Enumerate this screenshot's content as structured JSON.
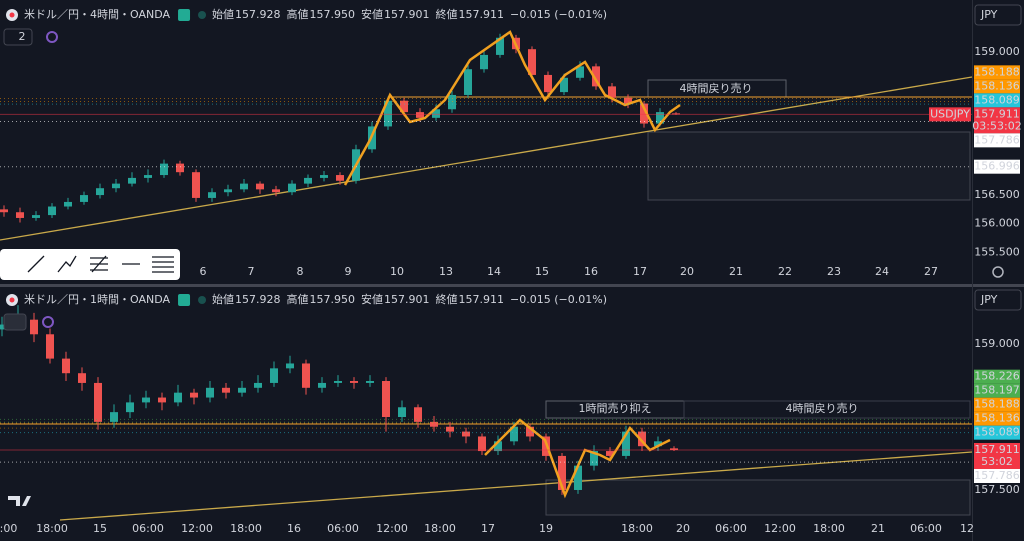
{
  "chart_data": [
    {
      "type": "candlestick",
      "title": "米ドル／円・4時間・OANDA",
      "indicator_count": "2",
      "ohlc_labels": [
        "始値",
        "高値",
        "安値",
        "終値"
      ],
      "ohlc_values": [
        157.928,
        {
          "value": 157.95,
          "label": "157.950"
        },
        157.901,
        157.911
      ],
      "change": "−0.015 (−0.01%)",
      "currency": "JPY",
      "candles": [
        [
          156.25,
          156.32,
          156.12,
          156.2
        ],
        [
          156.2,
          156.28,
          156.02,
          156.1
        ],
        [
          156.1,
          156.22,
          156.05,
          156.15
        ],
        [
          156.15,
          156.36,
          156.1,
          156.3
        ],
        [
          156.3,
          156.45,
          156.25,
          156.38
        ],
        [
          156.38,
          156.56,
          156.33,
          156.5
        ],
        [
          156.5,
          156.7,
          156.44,
          156.62
        ],
        [
          156.62,
          156.78,
          156.55,
          156.7
        ],
        [
          156.7,
          156.9,
          156.65,
          156.8
        ],
        [
          156.8,
          156.95,
          156.72,
          156.85
        ],
        [
          156.85,
          157.12,
          156.8,
          157.05
        ],
        [
          157.05,
          157.1,
          156.84,
          156.9
        ],
        [
          156.9,
          156.95,
          156.38,
          156.45
        ],
        [
          156.45,
          156.62,
          156.38,
          156.55
        ],
        [
          156.55,
          156.68,
          156.48,
          156.6
        ],
        [
          156.6,
          156.78,
          156.55,
          156.7
        ],
        [
          156.7,
          156.74,
          156.52,
          156.6
        ],
        [
          156.6,
          156.66,
          156.48,
          156.55
        ],
        [
          156.55,
          156.76,
          156.5,
          156.7
        ],
        [
          156.7,
          156.86,
          156.64,
          156.8
        ],
        [
          156.8,
          156.92,
          156.74,
          156.85
        ],
        [
          156.85,
          156.9,
          156.68,
          156.75
        ],
        [
          156.75,
          157.38,
          156.7,
          157.3
        ],
        [
          157.3,
          157.78,
          157.24,
          157.7
        ],
        [
          157.7,
          158.22,
          157.64,
          158.15
        ],
        [
          158.15,
          158.2,
          157.88,
          157.95
        ],
        [
          157.95,
          158.02,
          157.78,
          157.85
        ],
        [
          157.85,
          158.08,
          157.8,
          158.0
        ],
        [
          158.0,
          158.32,
          157.94,
          158.25
        ],
        [
          158.25,
          158.78,
          158.2,
          158.7
        ],
        [
          158.7,
          159.02,
          158.64,
          158.95
        ],
        [
          158.95,
          159.32,
          158.9,
          159.25
        ],
        [
          159.25,
          159.3,
          158.98,
          159.05
        ],
        [
          159.05,
          159.1,
          158.52,
          158.6
        ],
        [
          158.6,
          158.66,
          158.22,
          158.3
        ],
        [
          158.3,
          158.62,
          158.25,
          158.55
        ],
        [
          158.55,
          158.84,
          158.5,
          158.75
        ],
        [
          158.75,
          158.8,
          158.34,
          158.4
        ],
        [
          158.4,
          158.46,
          158.12,
          158.2
        ],
        [
          158.2,
          158.26,
          158.02,
          158.1
        ],
        [
          158.1,
          158.14,
          157.68,
          157.75
        ],
        [
          157.75,
          158.02,
          157.7,
          157.95
        ],
        [
          157.928,
          157.95,
          157.901,
          157.911
        ]
      ],
      "ylim": [
        155.33,
        159.91
      ],
      "yticks": [
        {
          "value": 159,
          "label": "159.000"
        },
        {
          "value": 156.5,
          "label": "156.500"
        },
        {
          "value": 156,
          "label": "156.000"
        },
        {
          "value": 155.5,
          "label": "155.500"
        }
      ],
      "price_tags": [
        {
          "value": 158.188,
          "color": "#ff9800"
        },
        {
          "value": 158.136,
          "color": "#ff9800"
        },
        {
          "value": 158.089,
          "color": "#26c6da"
        },
        {
          "value": 157.911,
          "color": "#f23645",
          "symbol": "USDJPY",
          "countdown": "03:53:02"
        },
        {
          "value": 157.786,
          "color": "#ffffff"
        },
        {
          "value": 156.996,
          "color": "#ffffff"
        }
      ],
      "xlabels": [
        "6",
        "7",
        "8",
        "9",
        "10",
        "13",
        "14",
        "15",
        "16",
        "17",
        "20",
        "21",
        "22",
        "23",
        "24",
        "27"
      ],
      "annotations": [
        "4時間戻り売り"
      ]
    },
    {
      "type": "candlestick",
      "title": "米ドル／円・1時間・OANDA",
      "ohlc_labels": [
        "始値",
        "高値",
        "安値",
        "終値"
      ],
      "ohlc_values": [
        157.928,
        {
          "value": 157.95,
          "label": "157.950"
        },
        157.901,
        157.911
      ],
      "change": "−0.015 (−0.01%)",
      "currency": "JPY",
      "candles": [
        [
          159.15,
          159.28,
          159.08,
          159.2
        ],
        [
          159.2,
          159.4,
          159.14,
          159.25
        ],
        [
          159.25,
          159.32,
          159.02,
          159.1
        ],
        [
          159.1,
          159.16,
          158.8,
          158.85
        ],
        [
          158.85,
          158.92,
          158.62,
          158.7
        ],
        [
          158.7,
          158.76,
          158.52,
          158.6
        ],
        [
          158.6,
          158.66,
          158.12,
          158.2
        ],
        [
          158.2,
          158.38,
          158.14,
          158.3
        ],
        [
          158.3,
          158.48,
          158.24,
          158.4
        ],
        [
          158.4,
          158.52,
          158.34,
          158.45
        ],
        [
          158.45,
          158.5,
          158.32,
          158.4
        ],
        [
          158.4,
          158.58,
          158.36,
          158.5
        ],
        [
          158.5,
          158.54,
          158.38,
          158.45
        ],
        [
          158.45,
          158.62,
          158.4,
          158.55
        ],
        [
          158.55,
          158.6,
          158.44,
          158.5
        ],
        [
          158.5,
          158.62,
          158.46,
          158.55
        ],
        [
          158.55,
          158.68,
          158.5,
          158.6
        ],
        [
          158.6,
          158.82,
          158.56,
          158.75
        ],
        [
          158.75,
          158.88,
          158.7,
          158.8
        ],
        [
          158.8,
          158.84,
          158.48,
          158.55
        ],
        [
          158.55,
          158.66,
          158.5,
          158.6
        ],
        [
          158.6,
          158.68,
          158.56,
          158.62
        ],
        [
          158.62,
          158.66,
          158.54,
          158.6
        ],
        [
          158.6,
          158.68,
          158.56,
          158.62
        ],
        [
          158.62,
          158.66,
          158.1,
          158.25
        ],
        [
          158.25,
          158.42,
          158.2,
          158.35
        ],
        [
          158.35,
          158.38,
          158.14,
          158.2
        ],
        [
          158.2,
          158.26,
          158.1,
          158.15
        ],
        [
          158.15,
          158.2,
          158.04,
          158.1
        ],
        [
          158.1,
          158.14,
          157.98,
          158.05
        ],
        [
          158.05,
          158.08,
          157.86,
          157.9
        ],
        [
          157.9,
          158.06,
          157.86,
          158.0
        ],
        [
          158.0,
          158.2,
          157.96,
          158.15
        ],
        [
          158.15,
          158.18,
          158.0,
          158.05
        ],
        [
          158.05,
          158.08,
          157.8,
          157.85
        ],
        [
          157.85,
          157.88,
          157.45,
          157.5
        ],
        [
          157.5,
          157.8,
          157.46,
          157.75
        ],
        [
          157.75,
          157.96,
          157.7,
          157.9
        ],
        [
          157.9,
          157.94,
          157.8,
          157.85
        ],
        [
          157.85,
          158.16,
          157.82,
          158.1
        ],
        [
          158.1,
          158.14,
          157.9,
          157.95
        ],
        [
          157.95,
          158.05,
          157.9,
          158.0
        ],
        [
          157.928,
          157.95,
          157.901,
          157.911
        ]
      ],
      "ylim": [
        157.243,
        159.555
      ],
      "yticks": [
        {
          "value": 159,
          "label": "159.000"
        },
        {
          "value": 157.5,
          "label": "157.500"
        }
      ],
      "price_tags": [
        {
          "value": 158.226,
          "color": "#4caf50"
        },
        {
          "value": 158.197,
          "color": "#4caf50"
        },
        {
          "value": 158.188,
          "color": "#ff9800"
        },
        {
          "value": 158.136,
          "color": "#ff9800"
        },
        {
          "value": 158.089,
          "color": "#26c6da"
        },
        {
          "value": 157.911,
          "color": "#f23645",
          "countdown": "53:02"
        },
        {
          "value": 157.786,
          "color": "#ffffff"
        }
      ],
      "xlabels": [
        "2:00",
        "18:00",
        "15",
        "06:00",
        "12:00",
        "18:00",
        "16",
        "06:00",
        "12:00",
        "18:00",
        "17",
        "19",
        "18:00",
        "20",
        "06:00",
        "12:00",
        "18:00",
        "21",
        "06:00",
        "12"
      ],
      "annotations": [
        "1時間売り抑え",
        "4時間戻り売り"
      ]
    }
  ]
}
